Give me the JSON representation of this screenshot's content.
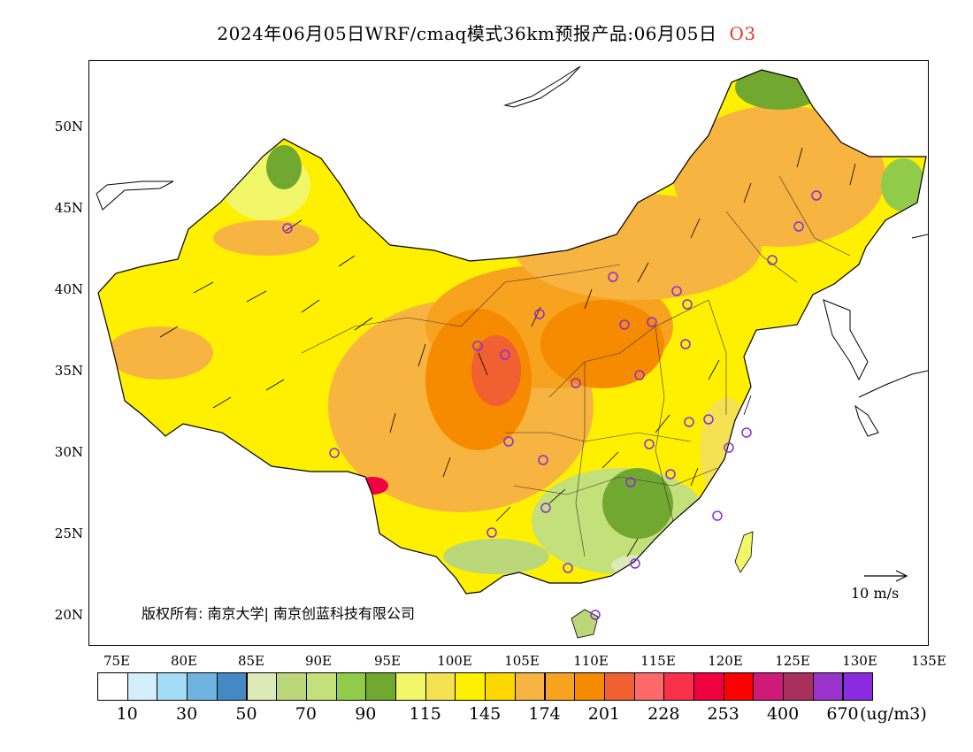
{
  "title": {
    "text": "2024年06月05日WRF/cmaq模式36km预报产品:06月05日",
    "species": "O3",
    "species_color": "#e8342c"
  },
  "map": {
    "lat_labels": [
      "50N",
      "45N",
      "40N",
      "35N",
      "30N",
      "25N",
      "20N"
    ],
    "lon_labels": [
      "75E",
      "80E",
      "85E",
      "90E",
      "95E",
      "100E",
      "105E",
      "110E",
      "115E",
      "120E",
      "125E",
      "130E",
      "135E"
    ],
    "copyright": "版权所有: 南京大学| 南京创蓝科技有限公司",
    "vector_scale_label": "10 m/s",
    "city_marker_color": "#8a2be2"
  },
  "legend": {
    "unit": "(ug/m3)",
    "labels": [
      "10",
      "30",
      "50",
      "70",
      "90",
      "115",
      "145",
      "174",
      "201",
      "228",
      "253",
      "400",
      "670"
    ],
    "colors": [
      "#ffffff",
      "#d4eefc",
      "#a3dcf5",
      "#6fb4e0",
      "#4488c4",
      "#dde9b7",
      "#bcd67a",
      "#c4e07a",
      "#90cc4a",
      "#70a830",
      "#f2f76a",
      "#f5e252",
      "#fff000",
      "#fdd800",
      "#f8b440",
      "#f8a320",
      "#f68b00",
      "#f06030",
      "#fe6a6a",
      "#f8304a",
      "#f00040",
      "#ff0000",
      "#cf1a78",
      "#a8305a",
      "#9933cc",
      "#8a2be2"
    ]
  }
}
